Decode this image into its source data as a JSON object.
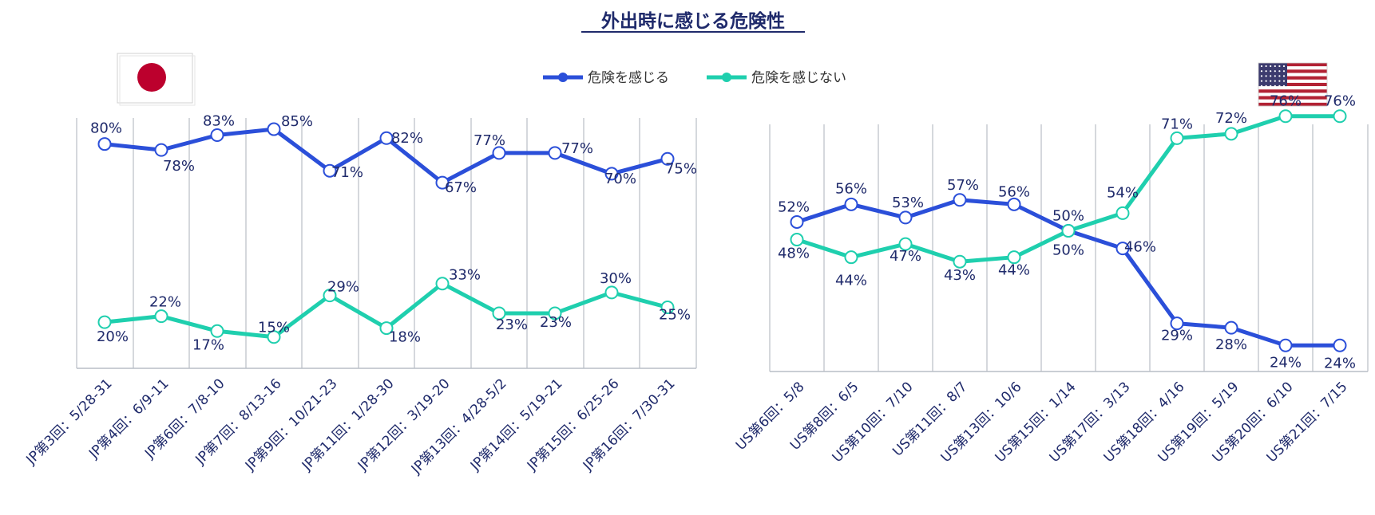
{
  "title": "外出時に感じる危険性",
  "colors": {
    "danger": "#2b4fd9",
    "no_danger": "#1fcfae",
    "text": "#1f2a6b"
  },
  "legend": {
    "danger_label": "危険を感じる",
    "no_danger_label": "危険を感じない",
    "position": "top-center"
  },
  "flags": {
    "left": "japan-flag",
    "right": "us-flag"
  },
  "chart_data": [
    {
      "type": "line",
      "categories": [
        "JP第3回：5/28-31",
        "JP第4回：6/9-11",
        "JP第6回：7/8-10",
        "JP第7回：8/13-16",
        "JP第9回：10/21-23",
        "JP第11回：1/28-30",
        "JP第12回：3/19-20",
        "JP第13回：4/28-5/2",
        "JP第14回：5/19-21",
        "JP第15回：6/25-26",
        "JP第16回：7/30-31"
      ],
      "series": [
        {
          "name": "危険を感じる",
          "values": [
            80,
            78,
            83,
            85,
            71,
            82,
            67,
            77,
            77,
            70,
            75
          ]
        },
        {
          "name": "危険を感じない",
          "values": [
            20,
            22,
            17,
            15,
            29,
            18,
            33,
            23,
            23,
            30,
            25
          ]
        }
      ],
      "unit": "%",
      "ylim": [
        0,
        100
      ],
      "grid": "vertical"
    },
    {
      "type": "line",
      "categories": [
        "US第6回：5/8",
        "US第8回：6/5",
        "US第10回：7/10",
        "US第11回：8/7",
        "US第13回：10/6",
        "US第15回：1/14",
        "US第17回：3/13",
        "US第18回：4/16",
        "US第19回：5/19",
        "US第20回：6/10",
        "US第21回：7/15"
      ],
      "series": [
        {
          "name": "危険を感じる",
          "values": [
            52,
            56,
            53,
            57,
            56,
            50,
            46,
            29,
            28,
            24,
            24
          ]
        },
        {
          "name": "危険を感じない",
          "values": [
            48,
            44,
            47,
            43,
            44,
            50,
            54,
            71,
            72,
            76,
            76
          ]
        }
      ],
      "unit": "%",
      "ylim": [
        0,
        100
      ],
      "grid": "vertical"
    }
  ]
}
